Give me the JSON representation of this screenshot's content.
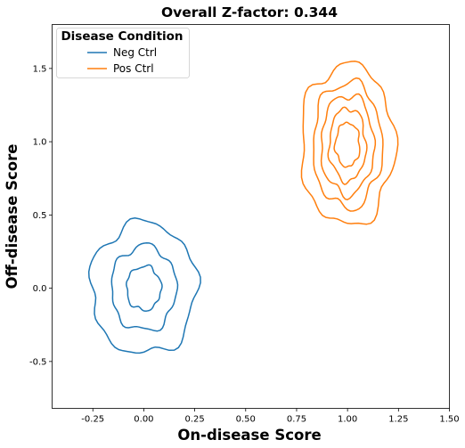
{
  "chart_data": {
    "type": "kde-contour",
    "title": "Overall Z-factor: 0.344",
    "xlabel": "On-disease Score",
    "ylabel": "Off-disease Score",
    "xlim": [
      -0.45,
      1.5
    ],
    "ylim": [
      -0.82,
      1.8
    ],
    "xticks": [
      "-0.25",
      "0.00",
      "0.25",
      "0.50",
      "0.75",
      "1.00",
      "1.25",
      "1.50"
    ],
    "yticks": [
      "-0.5",
      "0.0",
      "0.5",
      "1.0",
      "1.5"
    ],
    "grid": false,
    "legend": {
      "title": "Disease Condition",
      "placement": "top-left"
    },
    "series": [
      {
        "name": "Neg Ctrl",
        "color": "#1f77b4",
        "center": [
          0.0,
          0.0
        ],
        "levels": [
          {
            "rx": 0.26,
            "ry": 0.45
          },
          {
            "rx": 0.16,
            "ry": 0.29
          },
          {
            "rx": 0.085,
            "ry": 0.15
          }
        ]
      },
      {
        "name": "Pos Ctrl",
        "color": "#ff7f0e",
        "center": [
          1.0,
          0.98
        ],
        "levels": [
          {
            "rx": 0.23,
            "ry": 0.55
          },
          {
            "rx": 0.17,
            "ry": 0.43
          },
          {
            "rx": 0.13,
            "ry": 0.34
          },
          {
            "rx": 0.09,
            "ry": 0.25
          },
          {
            "rx": 0.06,
            "ry": 0.15
          }
        ]
      }
    ]
  }
}
